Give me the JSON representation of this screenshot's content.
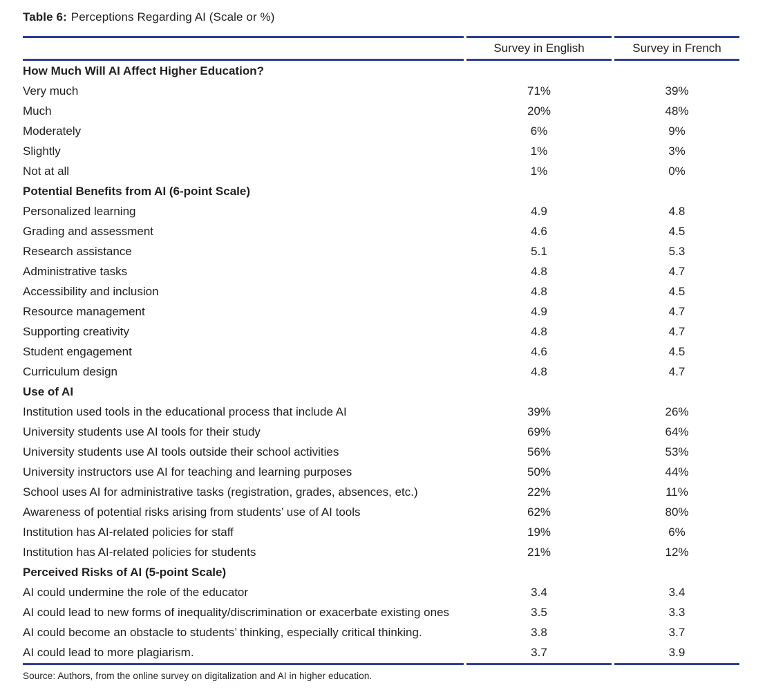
{
  "title": {
    "prefix": "Table 6:",
    "text": "Perceptions Regarding AI (Scale or %)"
  },
  "table": {
    "columns": [
      "Survey in English",
      "Survey in French"
    ],
    "sections": [
      {
        "header": "How Much Will AI Affect Higher Education?",
        "rows": [
          {
            "label": "Very much",
            "english": "71%",
            "french": "39%"
          },
          {
            "label": "Much",
            "english": "20%",
            "french": "48%"
          },
          {
            "label": "Moderately",
            "english": "6%",
            "french": "9%"
          },
          {
            "label": "Slightly",
            "english": "1%",
            "french": "3%"
          },
          {
            "label": "Not at all",
            "english": "1%",
            "french": "0%"
          }
        ]
      },
      {
        "header": "Potential Benefits from AI (6-point Scale)",
        "rows": [
          {
            "label": "Personalized learning",
            "english": "4.9",
            "french": "4.8"
          },
          {
            "label": "Grading and assessment",
            "english": "4.6",
            "french": "4.5"
          },
          {
            "label": "Research assistance",
            "english": "5.1",
            "french": "5.3"
          },
          {
            "label": "Administrative tasks",
            "english": "4.8",
            "french": "4.7"
          },
          {
            "label": "Accessibility and inclusion",
            "english": "4.8",
            "french": "4.5"
          },
          {
            "label": "Resource management",
            "english": "4.9",
            "french": "4.7"
          },
          {
            "label": "Supporting creativity",
            "english": "4.8",
            "french": "4.7"
          },
          {
            "label": "Student engagement",
            "english": "4.6",
            "french": "4.5"
          },
          {
            "label": "Curriculum design",
            "english": "4.8",
            "french": "4.7"
          }
        ]
      },
      {
        "header": "Use of AI",
        "rows": [
          {
            "label": "Institution used tools in the educational process that include AI",
            "english": "39%",
            "french": "26%"
          },
          {
            "label": "University students use AI tools for their study",
            "english": "69%",
            "french": "64%"
          },
          {
            "label": "University students use AI tools outside their school activities",
            "english": "56%",
            "french": "53%"
          },
          {
            "label": "University instructors use AI for teaching and learning purposes",
            "english": "50%",
            "french": "44%"
          },
          {
            "label": "School uses AI for administrative tasks (registration, grades, absences, etc.)",
            "english": "22%",
            "french": "11%"
          },
          {
            "label": "Awareness of potential risks arising from students’ use of AI tools",
            "english": "62%",
            "french": "80%"
          },
          {
            "label": "Institution has AI-related policies for staff",
            "english": "19%",
            "french": "6%"
          },
          {
            "label": "Institution has AI-related policies for students",
            "english": "21%",
            "french": "12%"
          }
        ]
      },
      {
        "header": "Perceived Risks of AI (5-point Scale)",
        "rows": [
          {
            "label": "AI could undermine the role of the educator",
            "english": "3.4",
            "french": "3.4"
          },
          {
            "label": "AI could lead to new forms of inequality/discrimination or exacerbate existing ones",
            "english": "3.5",
            "french": "3.3"
          },
          {
            "label": "AI could become an obstacle to students’ thinking, especially critical thinking.",
            "english": "3.8",
            "french": "3.7"
          },
          {
            "label": "AI could lead to more plagiarism.",
            "english": "3.7",
            "french": "3.9"
          }
        ]
      }
    ]
  },
  "source": "Source: Authors, from the online survey on digitalization and AI in higher education.",
  "colors": {
    "rule_blue": "#2c4091",
    "text": "#231f20"
  }
}
